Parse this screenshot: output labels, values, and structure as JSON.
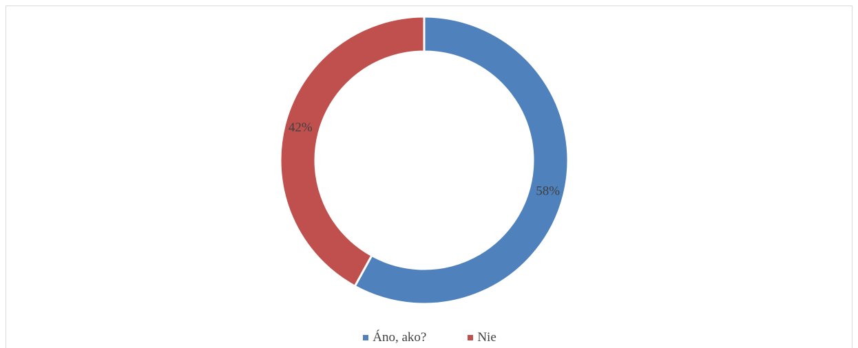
{
  "chart_data": {
    "type": "pie",
    "variant": "doughnut",
    "title": "",
    "series": [
      {
        "name": "Áno, ako?",
        "value": 58,
        "label": "58%",
        "color": "#4F81BD"
      },
      {
        "name": "Nie",
        "value": 42,
        "label": "42%",
        "color": "#C0504D"
      }
    ],
    "legend_position": "bottom"
  }
}
